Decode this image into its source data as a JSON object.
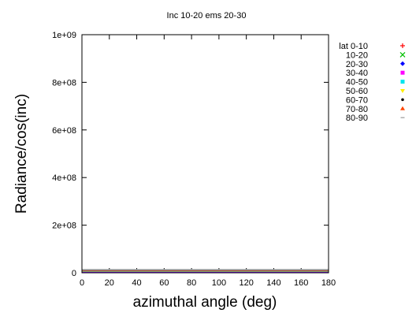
{
  "chart_data": {
    "type": "line",
    "title": "Inc 10-20 ems 20-30",
    "xlabel": "azimuthal angle (deg)",
    "ylabel": "Radiance/cos(inc)",
    "xlim": [
      0,
      180
    ],
    "ylim": [
      0,
      1000000000
    ],
    "x_ticks": [
      "0",
      "20",
      "40",
      "60",
      "80",
      "100",
      "120",
      "140",
      "160",
      "180"
    ],
    "y_ticks": [
      "0",
      "2e+08",
      "4e+08",
      "6e+08",
      "8e+08",
      "1e+09"
    ],
    "grid": false,
    "legend_position": "right",
    "x": [
      0,
      180
    ],
    "series": [
      {
        "name": "lat 0-10",
        "color": "#ff0000",
        "marker": "plus",
        "values": [
          0,
          0
        ]
      },
      {
        "name": "10-20",
        "color": "#00c000",
        "marker": "cross",
        "values": [
          0,
          0
        ]
      },
      {
        "name": "20-30",
        "color": "#0000ff",
        "marker": "diamond",
        "values": [
          0,
          0
        ]
      },
      {
        "name": "30-40",
        "color": "#ff00ff",
        "marker": "square",
        "values": [
          0,
          0
        ]
      },
      {
        "name": "40-50",
        "color": "#00e5ee",
        "marker": "square",
        "values": [
          0,
          0
        ]
      },
      {
        "name": "50-60",
        "color": "#ffee00",
        "marker": "triangle-down",
        "values": [
          0,
          0
        ]
      },
      {
        "name": "60-70",
        "color": "#000000",
        "marker": "dot",
        "values": [
          0,
          0
        ]
      },
      {
        "name": "70-80",
        "color": "#ff4500",
        "marker": "triangle",
        "values": [
          0,
          0
        ]
      },
      {
        "name": "80-90",
        "color": "#999999",
        "marker": "dash",
        "values": [
          0,
          0
        ]
      }
    ]
  }
}
